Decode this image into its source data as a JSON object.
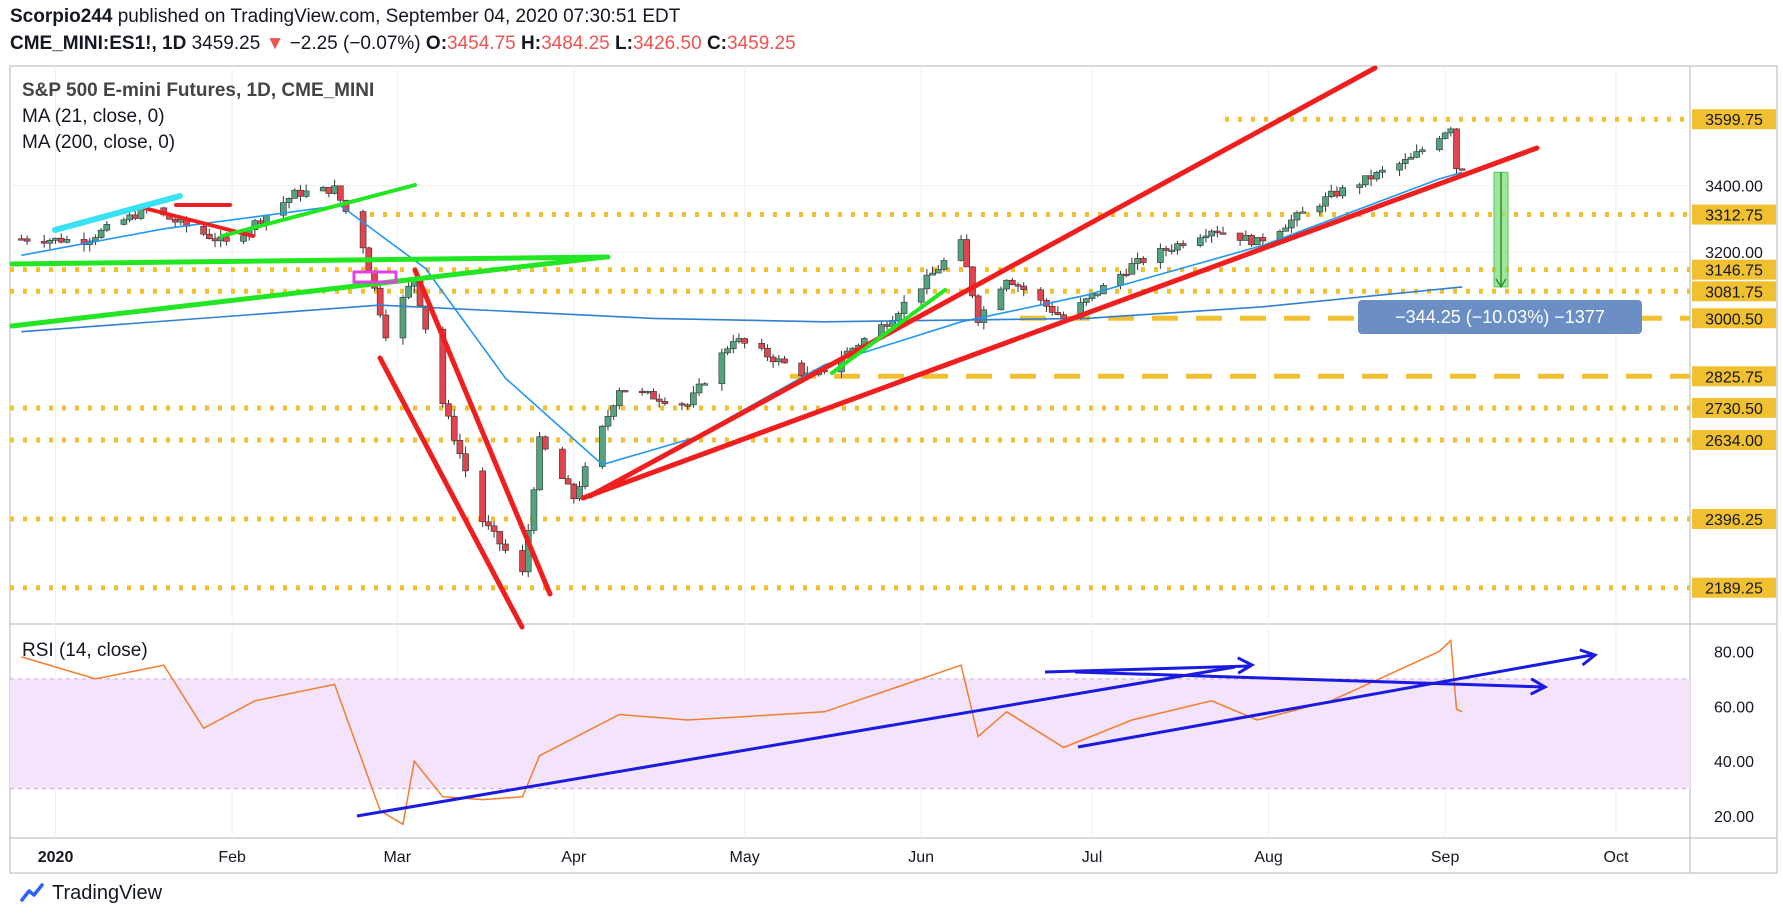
{
  "header": {
    "author": "Scorpio244",
    "published_text": "published on TradingView.com, September 04, 2020 07:30:51 EDT",
    "symbol": "CME_MINI:ES1!, 1D",
    "last": "3459.25",
    "change": "−2.25 (−0.07%)",
    "o_label": "O:",
    "o_value": "3454.75",
    "h_label": "H:",
    "h_value": "3484.25",
    "l_label": "L:",
    "l_value": "3426.50",
    "c_label": "C:",
    "c_value": "3459.25"
  },
  "legend": {
    "title": "S&P 500 E-mini Futures, 1D, CME_MINI",
    "ma21": "MA (21, close, 0)",
    "ma200": "MA (200, close, 0)",
    "rsi": "RSI (14, close)"
  },
  "measure_label": "−344.25 (−10.03%) −1377",
  "footer": {
    "brand": "TradingView"
  },
  "colors": {
    "up": "#53a37f",
    "down": "#e0444f",
    "ma21": "#2196f3",
    "ma200": "#2f80d1",
    "trend_red": "#f01f1f",
    "trend_green": "#21e621",
    "level": "#f0c030",
    "rsi_line": "#f47c2e",
    "rsi_band": "#f3e4fb",
    "rsi_trend": "#1a1ae0",
    "measure": "#86e07f",
    "measure_label_bg": "#6b8fc5"
  },
  "chart_data": [
    {
      "type": "candlestick",
      "title": "S&P 500 E-mini Futures, 1D, CME_MINI",
      "x_ticks": [
        "2020",
        "Feb",
        "Mar",
        "Apr",
        "May",
        "Jun",
        "Jul",
        "Aug",
        "Sep",
        "Oct"
      ],
      "y_ticks": [
        "3599.75",
        "3400.00",
        "3312.75",
        "3200.00",
        "3146.75",
        "3081.75",
        "3000.50",
        "2825.75",
        "2730.50",
        "2634.00",
        "2396.25",
        "2189.25"
      ],
      "ylim": [
        2080,
        3760
      ],
      "horizontal_levels": [
        3599.75,
        3312.75,
        3146.75,
        3081.75,
        3000.5,
        2825.75,
        2730.5,
        2634.0,
        2396.25,
        2189.25
      ],
      "close_path": [
        [
          "2019-12-26",
          3240
        ],
        [
          "2020-01-06",
          3235
        ],
        [
          "2020-01-17",
          3330
        ],
        [
          "2020-01-31",
          3225
        ],
        [
          "2020-02-12",
          3375
        ],
        [
          "2020-02-19",
          3390
        ],
        [
          "2020-02-24",
          3220
        ],
        [
          "2020-02-28",
          2955
        ],
        [
          "2020-03-04",
          3125
        ],
        [
          "2020-03-09",
          2745
        ],
        [
          "2020-03-16",
          2390
        ],
        [
          "2020-03-20",
          2300
        ],
        [
          "2020-03-23",
          2230
        ],
        [
          "2020-03-26",
          2630
        ],
        [
          "2020-04-01",
          2460
        ],
        [
          "2020-04-09",
          2790
        ],
        [
          "2020-04-21",
          2740
        ],
        [
          "2020-04-29",
          2940
        ],
        [
          "2020-05-13",
          2820
        ],
        [
          "2020-05-26",
          2990
        ],
        [
          "2020-06-08",
          3225
        ],
        [
          "2020-06-11",
          3000
        ],
        [
          "2020-06-16",
          3125
        ],
        [
          "2020-06-26",
          3000
        ],
        [
          "2020-07-08",
          3160
        ],
        [
          "2020-07-22",
          3270
        ],
        [
          "2020-07-30",
          3230
        ],
        [
          "2020-08-12",
          3370
        ],
        [
          "2020-08-26",
          3480
        ],
        [
          "2020-09-02",
          3580
        ],
        [
          "2020-09-03",
          3455
        ],
        [
          "2020-09-04",
          3459.25
        ]
      ],
      "ma21_path": [
        [
          "2019-12-26",
          3190
        ],
        [
          "2020-01-20",
          3270
        ],
        [
          "2020-02-20",
          3340
        ],
        [
          "2020-03-06",
          3150
        ],
        [
          "2020-03-20",
          2820
        ],
        [
          "2020-04-06",
          2560
        ],
        [
          "2020-04-22",
          2640
        ],
        [
          "2020-05-15",
          2860
        ],
        [
          "2020-06-08",
          2990
        ],
        [
          "2020-06-30",
          3070
        ],
        [
          "2020-07-31",
          3220
        ],
        [
          "2020-08-31",
          3420
        ],
        [
          "2020-09-04",
          3440
        ]
      ],
      "ma200_path": [
        [
          "2019-12-26",
          2960
        ],
        [
          "2020-02-27",
          3040
        ],
        [
          "2020-04-15",
          3000
        ],
        [
          "2020-05-15",
          2990
        ],
        [
          "2020-06-30",
          3000
        ],
        [
          "2020-07-31",
          3035
        ],
        [
          "2020-09-04",
          3095
        ]
      ],
      "measure": {
        "from": 3440,
        "to": 3095,
        "label": "−344.25 (−10.03%) −1377"
      }
    },
    {
      "type": "line",
      "title": "RSI (14, close)",
      "y_ticks": [
        "80.00",
        "60.00",
        "40.00",
        "20.00"
      ],
      "ylim": [
        12,
        90
      ],
      "band": [
        30,
        70
      ],
      "path": [
        [
          "2019-12-26",
          78
        ],
        [
          "2020-01-08",
          70
        ],
        [
          "2020-01-20",
          75
        ],
        [
          "2020-01-27",
          52
        ],
        [
          "2020-02-05",
          62
        ],
        [
          "2020-02-19",
          68
        ],
        [
          "2020-02-27",
          22
        ],
        [
          "2020-03-02",
          17
        ],
        [
          "2020-03-04",
          40
        ],
        [
          "2020-03-09",
          27
        ],
        [
          "2020-03-16",
          26
        ],
        [
          "2020-03-23",
          27
        ],
        [
          "2020-03-26",
          42
        ],
        [
          "2020-04-09",
          57
        ],
        [
          "2020-04-21",
          55
        ],
        [
          "2020-05-15",
          58
        ],
        [
          "2020-06-08",
          75
        ],
        [
          "2020-06-11",
          49
        ],
        [
          "2020-06-16",
          58
        ],
        [
          "2020-06-26",
          45
        ],
        [
          "2020-07-08",
          55
        ],
        [
          "2020-07-22",
          62
        ],
        [
          "2020-07-30",
          55
        ],
        [
          "2020-08-12",
          62
        ],
        [
          "2020-08-31",
          80
        ],
        [
          "2020-09-02",
          84
        ],
        [
          "2020-09-03",
          59
        ],
        [
          "2020-09-04",
          58
        ]
      ]
    }
  ]
}
